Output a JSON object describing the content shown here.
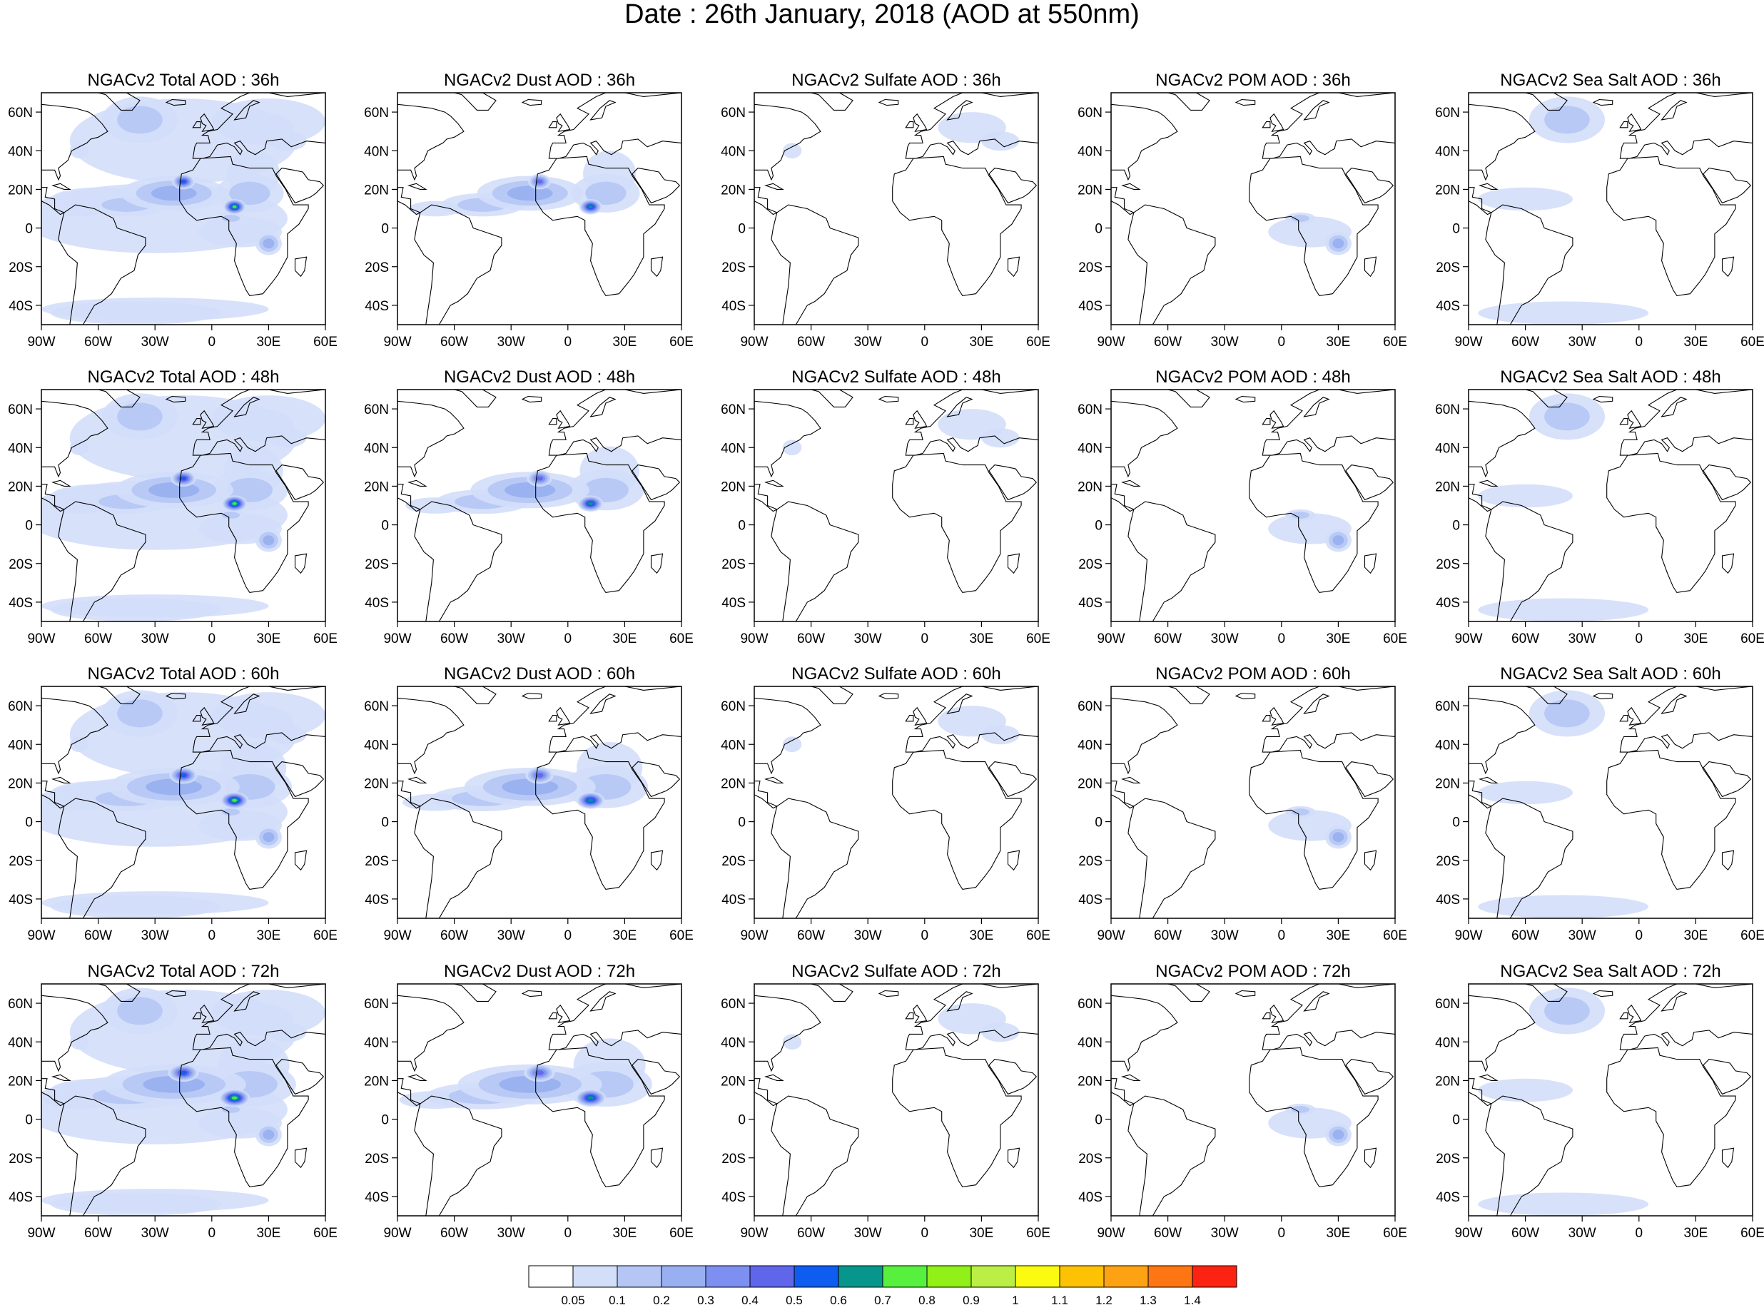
{
  "figure_title": "Date : 26th January, 2018 (AOD at 550nm)",
  "species": [
    {
      "key": "total",
      "label": "Total"
    },
    {
      "key": "dust",
      "label": "Dust"
    },
    {
      "key": "sulfate",
      "label": "Sulfate"
    },
    {
      "key": "pom",
      "label": "POM"
    },
    {
      "key": "seasalt",
      "label": "Sea Salt"
    }
  ],
  "forecast_hours": [
    "36h",
    "48h",
    "60h",
    "72h"
  ],
  "panel_titles": [
    [
      "NGACv2 Total AOD : 36h",
      "NGACv2 Dust AOD : 36h",
      "NGACv2 Sulfate AOD : 36h",
      "NGACv2 POM AOD : 36h",
      "NGACv2 Sea Salt AOD : 36h"
    ],
    [
      "NGACv2 Total AOD : 48h",
      "NGACv2 Dust AOD : 48h",
      "NGACv2 Sulfate AOD : 48h",
      "NGACv2 POM AOD : 48h",
      "NGACv2 Sea Salt AOD : 48h"
    ],
    [
      "NGACv2 Total AOD : 60h",
      "NGACv2 Dust AOD : 60h",
      "NGACv2 Sulfate AOD : 60h",
      "NGACv2 POM AOD : 60h",
      "NGACv2 Sea Salt AOD : 60h"
    ],
    [
      "NGACv2 Total AOD : 72h",
      "NGACv2 Dust AOD : 72h",
      "NGACv2 Sulfate AOD : 72h",
      "NGACv2 POM AOD : 72h",
      "NGACv2 Sea Salt  AOD : 72h"
    ]
  ],
  "map_extent": {
    "lon_min": -90,
    "lon_max": 60,
    "lat_min": -50,
    "lat_max": 70
  },
  "lon_ticks": [
    {
      "value": -90,
      "label": "90W"
    },
    {
      "value": -60,
      "label": "60W"
    },
    {
      "value": -30,
      "label": "30W"
    },
    {
      "value": 0,
      "label": "0"
    },
    {
      "value": 30,
      "label": "30E"
    },
    {
      "value": 60,
      "label": "60E"
    }
  ],
  "lat_ticks": [
    {
      "value": 60,
      "label": "60N"
    },
    {
      "value": 40,
      "label": "40N"
    },
    {
      "value": 20,
      "label": "20N"
    },
    {
      "value": 0,
      "label": "0"
    },
    {
      "value": -20,
      "label": "20S"
    },
    {
      "value": -40,
      "label": "40S"
    }
  ],
  "colorbar": {
    "colors": [
      "#ffffff",
      "#d3def9",
      "#b5c6f5",
      "#98aff1",
      "#7d8ff0",
      "#5f66ea",
      "#0f5cf0",
      "#06968c",
      "#58f03e",
      "#90f018",
      "#bcef46",
      "#fbfb12",
      "#fcc203",
      "#fda313",
      "#fd7613",
      "#fd2312"
    ],
    "labels": [
      "0.05",
      "0.1",
      "0.2",
      "0.3",
      "0.4",
      "0.5",
      "0.6",
      "0.7",
      "0.8",
      "0.9",
      "1",
      "1.1",
      "1.2",
      "1.3",
      "1.4"
    ]
  },
  "map_data": {
    "type": "contour-fill-map",
    "variable": "AOD at 550nm",
    "plumes": {
      "dust_saharan": [
        {
          "lon": -20,
          "lat": 18,
          "rx": 28,
          "ry": 9,
          "level": 3
        },
        {
          "lon": -45,
          "lat": 12,
          "rx": 22,
          "ry": 6,
          "level": 2
        },
        {
          "lon": -70,
          "lat": 10,
          "rx": 14,
          "ry": 4,
          "level": 1
        },
        {
          "lon": -15,
          "lat": 24,
          "rx": 6,
          "ry": 4,
          "level": 5
        },
        {
          "lon": 12,
          "lat": 11,
          "rx": 6,
          "ry": 4,
          "level": 7
        },
        {
          "lon": 22,
          "lat": 28,
          "rx": 14,
          "ry": 12,
          "level": 1
        },
        {
          "lon": 20,
          "lat": 18,
          "rx": 18,
          "ry": 10,
          "level": 2
        }
      ],
      "pom_central_africa": [
        {
          "lon": 15,
          "lat": -2,
          "rx": 22,
          "ry": 8,
          "level": 1
        },
        {
          "lon": 30,
          "lat": -8,
          "rx": 7,
          "ry": 6,
          "level": 3
        },
        {
          "lon": 10,
          "lat": 5,
          "rx": 8,
          "ry": 3,
          "level": 2
        }
      ],
      "sulfate_europe": [
        {
          "lon": 25,
          "lat": 52,
          "rx": 18,
          "ry": 8,
          "level": 1
        },
        {
          "lon": -70,
          "lat": 40,
          "rx": 5,
          "ry": 4,
          "level": 1
        },
        {
          "lon": 40,
          "lat": 45,
          "rx": 10,
          "ry": 5,
          "level": 1
        }
      ],
      "seasalt_storm": [
        {
          "lon": -38,
          "lat": 56,
          "rx": 20,
          "ry": 12,
          "level": 2
        },
        {
          "lon": -40,
          "lat": -44,
          "rx": 45,
          "ry": 6,
          "level": 1
        },
        {
          "lon": -60,
          "lat": 15,
          "rx": 25,
          "ry": 6,
          "level": 1
        }
      ]
    }
  }
}
